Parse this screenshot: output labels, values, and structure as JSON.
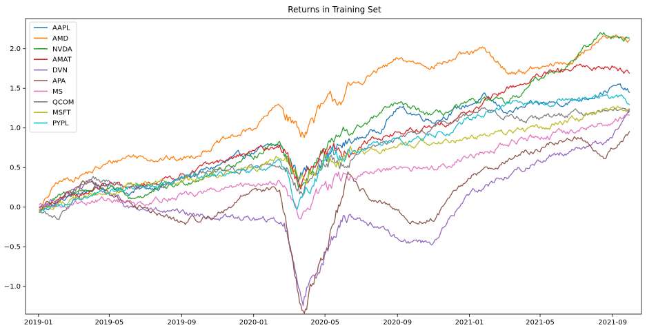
{
  "chart_data": {
    "type": "line",
    "title": "Returns in Training Set",
    "xlabel": "",
    "ylabel": "",
    "x_range": [
      "2018-12-10",
      "2021-10-20"
    ],
    "ylim": [
      -1.35,
      2.38
    ],
    "x_ticks": [
      "2019-01",
      "2019-05",
      "2019-09",
      "2020-01",
      "2020-05",
      "2020-09",
      "2021-01",
      "2021-05",
      "2021-09"
    ],
    "y_ticks": [
      -1.0,
      -0.5,
      0.0,
      0.5,
      1.0,
      1.5,
      2.0
    ],
    "y_tick_labels": [
      "−1.0",
      "−0.5",
      "0.0",
      "0.5",
      "1.0",
      "1.5",
      "2.0"
    ],
    "grid": false,
    "legend_position": "top-left",
    "series": [
      {
        "name": "AAPL",
        "color": "#1f77b4",
        "x": [
          "2019-01-02",
          "2019-03-01",
          "2019-05-01",
          "2019-06-03",
          "2019-09-02",
          "2020-01-02",
          "2020-02-14",
          "2020-03-20",
          "2020-05-01",
          "2020-08-03",
          "2020-09-01",
          "2020-11-02",
          "2021-01-25",
          "2021-03-08",
          "2021-05-03",
          "2021-07-01",
          "2021-09-07",
          "2021-09-30"
        ],
        "values": [
          -0.05,
          0.15,
          0.3,
          0.18,
          0.35,
          0.7,
          0.78,
          0.4,
          0.65,
          1.0,
          1.25,
          1.1,
          1.38,
          1.2,
          1.3,
          1.35,
          1.52,
          1.45
        ]
      },
      {
        "name": "AMD",
        "color": "#ff7f0e",
        "x": [
          "2019-01-02",
          "2019-02-01",
          "2019-04-01",
          "2019-06-03",
          "2019-09-02",
          "2020-01-02",
          "2020-02-14",
          "2020-03-20",
          "2020-05-01",
          "2020-07-24",
          "2020-09-03",
          "2020-11-02",
          "2021-01-25",
          "2021-03-08",
          "2021-05-03",
          "2021-07-01",
          "2021-08-16",
          "2021-09-30"
        ],
        "values": [
          -0.05,
          0.3,
          0.45,
          0.65,
          0.6,
          1.0,
          1.3,
          0.95,
          1.25,
          1.7,
          1.85,
          1.8,
          1.98,
          1.7,
          1.75,
          1.85,
          2.2,
          2.08
        ]
      },
      {
        "name": "NVDA",
        "color": "#2ca02c",
        "x": [
          "2019-01-02",
          "2019-03-01",
          "2019-05-01",
          "2019-06-03",
          "2019-09-02",
          "2020-01-02",
          "2020-02-14",
          "2020-03-18",
          "2020-05-01",
          "2020-08-31",
          "2020-11-02",
          "2021-01-25",
          "2021-03-08",
          "2021-05-03",
          "2021-06-15",
          "2021-08-16",
          "2021-09-30"
        ],
        "values": [
          0.0,
          0.2,
          0.25,
          0.1,
          0.3,
          0.65,
          0.85,
          0.3,
          0.75,
          1.3,
          1.15,
          1.35,
          1.3,
          1.65,
          1.8,
          2.2,
          2.12
        ]
      },
      {
        "name": "AMAT",
        "color": "#d62728",
        "x": [
          "2019-01-02",
          "2019-03-01",
          "2019-05-01",
          "2019-06-03",
          "2019-09-02",
          "2020-01-02",
          "2020-02-14",
          "2020-03-20",
          "2020-05-01",
          "2020-08-03",
          "2020-11-02",
          "2021-01-25",
          "2021-03-08",
          "2021-05-03",
          "2021-07-01",
          "2021-09-07",
          "2021-09-30"
        ],
        "values": [
          -0.05,
          0.15,
          0.28,
          0.22,
          0.42,
          0.7,
          0.78,
          0.3,
          0.6,
          0.9,
          1.0,
          1.3,
          1.5,
          1.65,
          1.75,
          1.78,
          1.7
        ]
      },
      {
        "name": "DVN",
        "color": "#9467bd",
        "x": [
          "2019-01-02",
          "2019-04-01",
          "2019-06-03",
          "2019-09-02",
          "2020-01-02",
          "2020-02-21",
          "2020-03-18",
          "2020-03-24",
          "2020-05-01",
          "2020-06-08",
          "2020-08-03",
          "2020-09-01",
          "2020-10-30",
          "2021-01-04",
          "2021-03-08",
          "2021-05-03",
          "2021-07-01",
          "2021-08-20",
          "2021-09-30"
        ],
        "values": [
          0.0,
          0.3,
          0.0,
          -0.1,
          -0.15,
          -0.2,
          -0.95,
          -1.15,
          -0.55,
          -0.1,
          -0.25,
          -0.4,
          -0.45,
          0.2,
          0.4,
          0.6,
          0.75,
          0.82,
          1.15
        ]
      },
      {
        "name": "APA",
        "color": "#8c564b",
        "x": [
          "2019-01-02",
          "2019-04-01",
          "2019-06-03",
          "2019-09-02",
          "2019-11-01",
          "2020-01-02",
          "2020-02-14",
          "2020-03-18",
          "2020-03-30",
          "2020-05-01",
          "2020-06-08",
          "2020-08-03",
          "2020-10-02",
          "2020-11-02",
          "2021-01-04",
          "2021-03-08",
          "2021-05-03",
          "2021-07-01",
          "2021-08-20",
          "2021-09-30"
        ],
        "values": [
          0.0,
          0.3,
          0.05,
          -0.2,
          -0.1,
          0.25,
          0.2,
          -1.2,
          -1.25,
          -0.5,
          0.3,
          0.05,
          -0.2,
          -0.15,
          0.4,
          0.6,
          0.75,
          0.9,
          0.65,
          0.95
        ]
      },
      {
        "name": "MS",
        "color": "#e377c2",
        "x": [
          "2019-01-02",
          "2019-03-01",
          "2019-05-01",
          "2019-06-03",
          "2019-09-02",
          "2020-01-02",
          "2020-02-14",
          "2020-03-20",
          "2020-05-01",
          "2020-08-03",
          "2020-11-02",
          "2021-01-04",
          "2021-03-08",
          "2021-05-03",
          "2021-07-01",
          "2021-09-07",
          "2021-09-30"
        ],
        "values": [
          0.0,
          0.05,
          0.1,
          0.05,
          0.15,
          0.28,
          0.35,
          -0.15,
          0.3,
          0.45,
          0.5,
          0.65,
          0.8,
          0.9,
          0.95,
          1.1,
          1.18
        ]
      },
      {
        "name": "QCOM",
        "color": "#7f7f7f",
        "x": [
          "2019-01-02",
          "2019-02-01",
          "2019-03-25",
          "2019-05-01",
          "2019-06-03",
          "2019-09-02",
          "2020-01-02",
          "2020-02-14",
          "2020-03-20",
          "2020-05-01",
          "2020-08-03",
          "2020-11-02",
          "2021-01-25",
          "2021-03-08",
          "2021-05-03",
          "2021-07-01",
          "2021-09-07",
          "2021-09-30"
        ],
        "values": [
          -0.05,
          -0.15,
          0.35,
          0.3,
          0.25,
          0.35,
          0.52,
          0.55,
          0.25,
          0.55,
          0.8,
          1.0,
          1.25,
          1.15,
          1.1,
          1.2,
          1.25,
          1.2
        ]
      },
      {
        "name": "MSFT",
        "color": "#bcbd22",
        "x": [
          "2019-01-02",
          "2019-03-01",
          "2019-05-01",
          "2019-06-03",
          "2019-09-02",
          "2020-01-02",
          "2020-02-14",
          "2020-03-20",
          "2020-05-01",
          "2020-08-03",
          "2020-11-02",
          "2021-01-04",
          "2021-03-08",
          "2021-05-03",
          "2021-07-01",
          "2021-09-07",
          "2021-09-30"
        ],
        "values": [
          -0.05,
          0.1,
          0.2,
          0.25,
          0.32,
          0.5,
          0.62,
          0.35,
          0.55,
          0.72,
          0.82,
          0.88,
          0.95,
          1.0,
          1.12,
          1.25,
          1.22
        ]
      },
      {
        "name": "PYPL",
        "color": "#17becf",
        "x": [
          "2019-01-02",
          "2019-03-01",
          "2019-05-01",
          "2019-06-03",
          "2019-09-02",
          "2020-01-02",
          "2020-02-14",
          "2020-03-20",
          "2020-05-01",
          "2020-08-03",
          "2020-11-02",
          "2021-01-25",
          "2021-03-08",
          "2021-05-03",
          "2021-07-01",
          "2021-09-07",
          "2021-09-30"
        ],
        "values": [
          -0.05,
          0.1,
          0.2,
          0.25,
          0.35,
          0.45,
          0.55,
          0.1,
          0.55,
          0.8,
          0.9,
          1.2,
          1.3,
          1.3,
          1.35,
          1.4,
          1.32
        ]
      }
    ]
  }
}
